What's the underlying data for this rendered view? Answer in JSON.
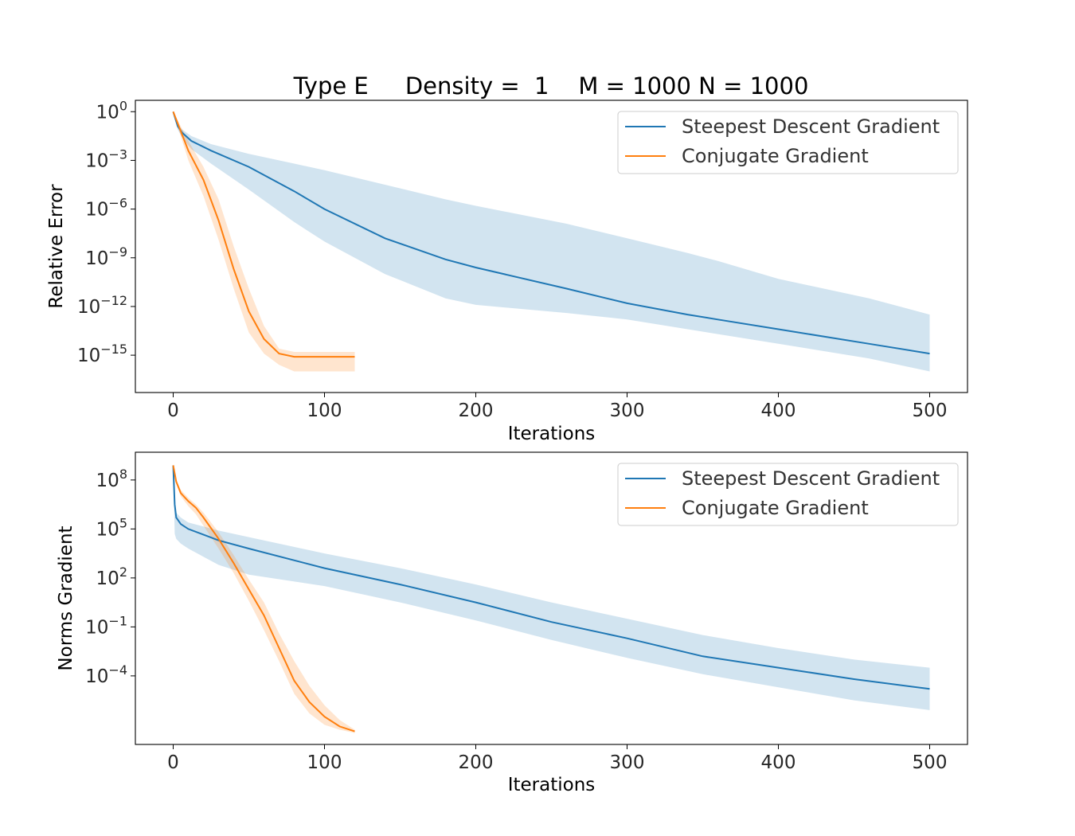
{
  "figure_title": "Type E     Density =  1    M = 1000 N = 1000",
  "colors": {
    "steepest": "#1f77b4",
    "conjugate": "#ff7f0e"
  },
  "chart_data": [
    {
      "type": "line",
      "yscale": "log",
      "ylabel": "Relative Error",
      "xlabel": "Iterations",
      "xlim": [
        -25,
        525
      ],
      "ylim_exp": [
        -17.3,
        0.7
      ],
      "xticks": [
        0,
        100,
        200,
        300,
        400,
        500
      ],
      "xtick_labels": [
        "0",
        "100",
        "200",
        "300",
        "400",
        "500"
      ],
      "yticks_exp": [
        0,
        -3,
        -6,
        -9,
        -12,
        -15
      ],
      "ytick_labels": [
        {
          "base": "10",
          "exp": "0"
        },
        {
          "base": "10",
          "exp": "−3"
        },
        {
          "base": "10",
          "exp": "−6"
        },
        {
          "base": "10",
          "exp": "−9"
        },
        {
          "base": "10",
          "exp": "−12"
        },
        {
          "base": "10",
          "exp": "−15"
        }
      ],
      "legend_position": "upper right",
      "series": [
        {
          "name": "Steepest Descent Gradient",
          "x": [
            0,
            3,
            6,
            12,
            25,
            50,
            80,
            100,
            140,
            180,
            200,
            260,
            300,
            340,
            360,
            400,
            460,
            500
          ],
          "log10_mean": [
            0,
            -0.9,
            -1.3,
            -1.8,
            -2.4,
            -3.4,
            -4.9,
            -6.0,
            -7.8,
            -9.1,
            -9.6,
            -10.9,
            -11.8,
            -12.5,
            -12.8,
            -13.4,
            -14.3,
            -14.9
          ],
          "log10_upper": [
            0,
            -0.8,
            -1.1,
            -1.5,
            -2.0,
            -2.6,
            -3.2,
            -3.6,
            -4.5,
            -5.4,
            -5.8,
            -6.9,
            -7.8,
            -8.7,
            -9.2,
            -10.3,
            -11.5,
            -12.5
          ],
          "log10_lower": [
            0,
            -1.1,
            -1.6,
            -2.3,
            -3.2,
            -4.8,
            -6.8,
            -8.0,
            -10.0,
            -11.5,
            -11.9,
            -12.4,
            -12.8,
            -13.4,
            -13.7,
            -14.3,
            -15.2,
            -16.0
          ]
        },
        {
          "name": "Conjugate Gradient",
          "x": [
            0,
            5,
            10,
            20,
            30,
            40,
            50,
            60,
            70,
            80,
            90,
            100,
            110,
            120
          ],
          "log10_mean": [
            0,
            -1.2,
            -2.4,
            -4.2,
            -6.7,
            -9.7,
            -12.3,
            -14.0,
            -14.9,
            -15.1,
            -15.1,
            -15.1,
            -15.1,
            -15.1
          ],
          "log10_upper": [
            0,
            -0.9,
            -1.8,
            -3.4,
            -5.4,
            -8.3,
            -10.9,
            -13.2,
            -14.6,
            -14.8,
            -14.8,
            -14.8,
            -14.8,
            -14.8
          ],
          "log10_lower": [
            0,
            -1.5,
            -3.0,
            -5.2,
            -7.9,
            -10.9,
            -13.6,
            -14.9,
            -15.6,
            -16.0,
            -16.0,
            -16.0,
            -16.0,
            -16.0
          ]
        }
      ]
    },
    {
      "type": "line",
      "yscale": "log",
      "ylabel": "Norms Gradient",
      "xlabel": "Iterations",
      "xlim": [
        -25,
        525
      ],
      "ylim_exp": [
        -8.2,
        9.7
      ],
      "xticks": [
        0,
        100,
        200,
        300,
        400,
        500
      ],
      "xtick_labels": [
        "0",
        "100",
        "200",
        "300",
        "400",
        "500"
      ],
      "yticks_exp": [
        8,
        5,
        2,
        -1,
        -4
      ],
      "ytick_labels": [
        {
          "base": "10",
          "exp": "8"
        },
        {
          "base": "10",
          "exp": "5"
        },
        {
          "base": "10",
          "exp": "2"
        },
        {
          "base": "10",
          "exp": "−1"
        },
        {
          "base": "10",
          "exp": "−4"
        }
      ],
      "legend_position": "upper right",
      "series": [
        {
          "name": "Steepest Descent Gradient",
          "x": [
            0,
            1,
            2,
            5,
            10,
            30,
            50,
            100,
            150,
            200,
            250,
            300,
            350,
            400,
            450,
            500
          ],
          "log10_mean": [
            8.9,
            6.5,
            5.7,
            5.3,
            5.0,
            4.3,
            3.8,
            2.6,
            1.6,
            0.5,
            -0.7,
            -1.7,
            -2.8,
            -3.5,
            -4.2,
            -4.8
          ],
          "log10_upper": [
            8.9,
            6.8,
            6.0,
            5.7,
            5.4,
            4.9,
            4.5,
            3.5,
            2.6,
            1.6,
            0.5,
            -0.5,
            -1.5,
            -2.3,
            -3.0,
            -3.5
          ],
          "log10_lower": [
            8.9,
            4.7,
            4.4,
            4.1,
            3.8,
            2.8,
            2.2,
            1.5,
            0.5,
            -0.6,
            -1.8,
            -2.9,
            -3.9,
            -4.7,
            -5.5,
            -6.1
          ]
        },
        {
          "name": "Conjugate Gradient",
          "x": [
            0,
            2,
            5,
            10,
            15,
            20,
            30,
            40,
            50,
            60,
            70,
            80,
            90,
            100,
            110,
            120
          ],
          "log10_mean": [
            8.9,
            7.9,
            7.2,
            6.7,
            6.3,
            5.7,
            4.4,
            2.9,
            1.3,
            -0.3,
            -2.3,
            -4.3,
            -5.6,
            -6.5,
            -7.1,
            -7.4
          ],
          "log10_upper": [
            8.9,
            8.0,
            7.4,
            6.9,
            6.5,
            6.0,
            4.8,
            3.4,
            1.9,
            0.5,
            -1.4,
            -3.1,
            -4.6,
            -5.8,
            -6.7,
            -7.3
          ],
          "log10_lower": [
            8.9,
            7.8,
            7.0,
            6.4,
            5.9,
            5.2,
            3.8,
            2.3,
            0.6,
            -1.2,
            -3.1,
            -5.1,
            -6.3,
            -7.0,
            -7.3,
            -7.5
          ]
        }
      ]
    }
  ]
}
